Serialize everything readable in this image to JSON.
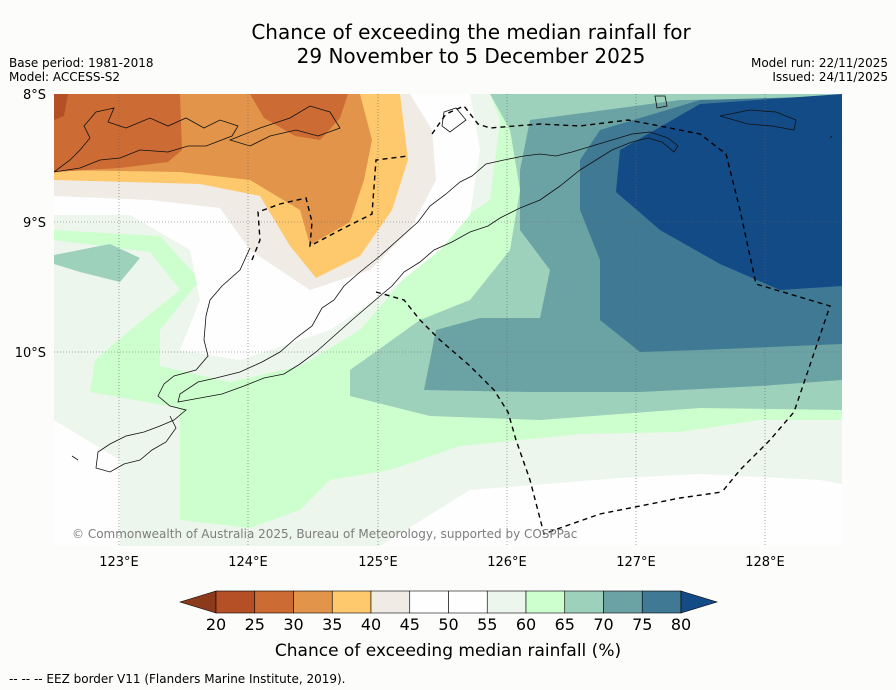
{
  "title": {
    "line1": "Chance of exceeding the median rainfall for",
    "line2": "29 November to 5 December 2025"
  },
  "meta": {
    "base_period": "Base period: 1981-2018",
    "model": "Model: ACCESS-S2",
    "model_run": "Model run: 22/11/2025",
    "issued": "Issued: 24/11/2025"
  },
  "map": {
    "lat_labels": [
      "8°S",
      "9°S",
      "10°S"
    ],
    "lon_labels": [
      "123°E",
      "124°E",
      "125°E",
      "126°E",
      "127°E",
      "128°E"
    ],
    "copyright": "© Commonwealth of Australia 2025, Bureau of Meteorology, supported by COSPPac"
  },
  "colorbar": {
    "ticks": [
      "20",
      "25",
      "30",
      "35",
      "40",
      "45",
      "50",
      "55",
      "60",
      "65",
      "70",
      "75",
      "80"
    ],
    "colors": [
      "#8c3a1c",
      "#b44f26",
      "#cd6b35",
      "#e2954a",
      "#fec96c",
      "#f0ebe5",
      "#fefefe",
      "#fefefe",
      "#edf6ec",
      "#cdfecd",
      "#9dd1bb",
      "#6ba3a5",
      "#407994",
      "#134b87"
    ],
    "label": "Chance of exceeding median rainfall (%)"
  },
  "footer": "-- -- -- EEZ border V11 (Flanders Marine Institute, 2019)."
}
